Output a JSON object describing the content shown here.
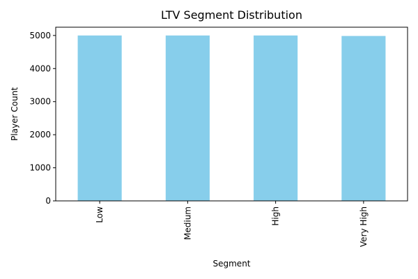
{
  "chart_data": {
    "type": "bar",
    "title": "LTV Segment Distribution",
    "xlabel": "Segment",
    "ylabel": "Player Count",
    "categories": [
      "Low",
      "Medium",
      "High",
      "Very High"
    ],
    "values": [
      5000,
      5000,
      5000,
      4985
    ],
    "ylim": [
      0,
      5250
    ],
    "yticks": [
      0,
      1000,
      2000,
      3000,
      4000,
      5000
    ],
    "bar_color": "#87ceeb",
    "grid": false,
    "legend": "none"
  }
}
